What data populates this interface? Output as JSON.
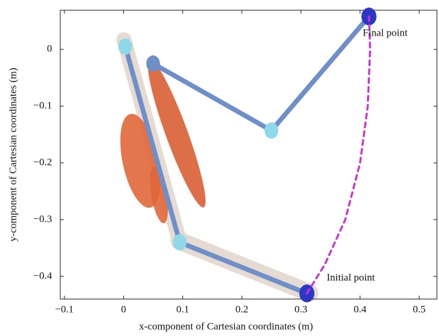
{
  "chart_data": {
    "type": "line",
    "xlabel": "x-component of Cartesian coordinates (m)",
    "ylabel": "y-component of Cartesian coordinates (m)",
    "xlim": [
      -0.107,
      0.53
    ],
    "ylim": [
      -0.44,
      0.069
    ],
    "xticks": [
      {
        "value": -0.1,
        "label": "−0.1"
      },
      0,
      0.1,
      0.2,
      0.3,
      0.4,
      0.5
    ],
    "yticks": [
      {
        "value": -0.4,
        "label": "−0.4"
      },
      {
        "value": -0.3,
        "label": "−0.3"
      },
      {
        "value": -0.2,
        "label": "−0.2"
      },
      {
        "value": -0.1,
        "label": "−0.1"
      },
      0
    ],
    "series": [
      {
        "color": "#6f8fc8",
        "marker_colors": [
          "#8fd8ea",
          "#8fd8ea",
          "#2b38c4"
        ],
        "x": [
          0.003,
          0.095,
          0.31
        ],
        "values": [
          0.005,
          -0.34,
          -0.43
        ]
      },
      {
        "color": "#6f8fc8",
        "marker_colors": [
          "#6f8fc8",
          "#8fd8ea",
          "#2b38c4"
        ],
        "x": [
          0.05,
          0.25,
          0.415
        ],
        "values": [
          -0.025,
          -0.143,
          0.058
        ]
      },
      {
        "color": "#cc33cc",
        "dashed": true,
        "x": [
          0.31,
          0.34,
          0.375,
          0.4,
          0.413,
          0.417,
          0.415
        ],
        "values": [
          -0.43,
          -0.38,
          -0.3,
          -0.2,
          -0.1,
          0.0,
          0.058
        ]
      }
    ],
    "annotations": [
      "Final point",
      "Initial point"
    ]
  }
}
